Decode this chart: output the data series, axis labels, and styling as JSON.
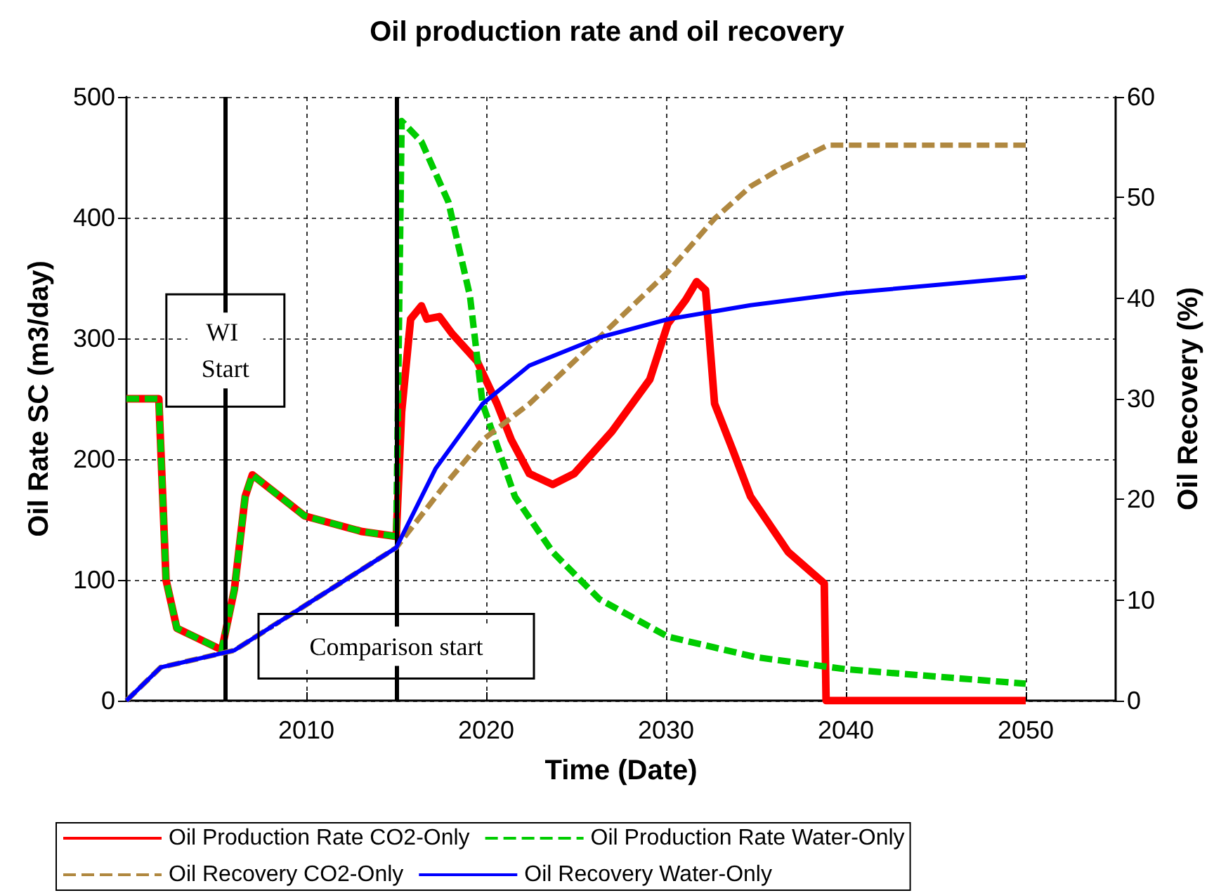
{
  "chart_data": {
    "type": "line",
    "title": "Oil production rate and oil recovery",
    "xlabel": "Time (Date)",
    "ylabel": "Oil Rate SC (m3/day)",
    "y2label": "Oil Recovery (%)",
    "xlim": [
      2000,
      2055
    ],
    "xticks": [
      2010,
      2020,
      2030,
      2040,
      2050
    ],
    "ylim": [
      0,
      500
    ],
    "yticks": [
      0,
      100,
      200,
      300,
      400,
      500
    ],
    "y2lim": [
      0,
      60
    ],
    "y2ticks": [
      0,
      10,
      20,
      30,
      40,
      50,
      60
    ],
    "grid": true,
    "legend": "bottom",
    "marker": "none",
    "ref_lines": [
      {
        "axis": "x",
        "value": 2005.5,
        "label": "WI Start",
        "color": "#000000",
        "line_style": "solid"
      },
      {
        "axis": "x",
        "value": 2015.0,
        "label": "Comparison start",
        "color": "#000000",
        "line_style": "solid"
      }
    ],
    "series": [
      {
        "name": "Oil Production Rate CO2-Only",
        "color": "#ff0000",
        "line_style": "solid",
        "x": [
          2000,
          2001.8,
          2002.2,
          2002.8,
          2005.3,
          2006.0,
          2006.6,
          2007.0,
          2009.9,
          2013.1,
          2015.0,
          2015.3,
          2015.8,
          2016.4,
          2016.7,
          2017.4,
          2018.1,
          2019.5,
          2020.6,
          2021.4,
          2022.4,
          2023.7,
          2024.9,
          2027.0,
          2029.1,
          2030.1,
          2031.1,
          2031.7,
          2032.2,
          2032.7,
          2033.7,
          2034.7,
          2036.8,
          2038.8,
          2038.9,
          2050
        ],
        "values": [
          250,
          250,
          100,
          60,
          42,
          92,
          169,
          187,
          153,
          140,
          136,
          239,
          316,
          327,
          316,
          318,
          304,
          281,
          246,
          216,
          188,
          179,
          188,
          223,
          266,
          312,
          332,
          347,
          340,
          246,
          208,
          169,
          123,
          97,
          0,
          0
        ]
      },
      {
        "name": "Oil Production Rate Water-Only",
        "color": "#00cc00",
        "line_style": "dashed",
        "x": [
          2000,
          2001.8,
          2002.2,
          2002.8,
          2005.3,
          2006.0,
          2006.6,
          2007.0,
          2009.9,
          2013.1,
          2015.0,
          2015.3,
          2016.4,
          2017.9,
          2019.1,
          2019.8,
          2021.6,
          2023.7,
          2026.3,
          2030.1,
          2035,
          2040,
          2045,
          2050
        ],
        "values": [
          250,
          250,
          100,
          60,
          42,
          92,
          169,
          187,
          153,
          140,
          136,
          480,
          463,
          413,
          335,
          246,
          169,
          123,
          84,
          53,
          36,
          26,
          20,
          14
        ]
      },
      {
        "name": "Oil Recovery CO2-Only",
        "color": "#b08840",
        "line_style": "dashed",
        "axis": "y2",
        "x": [
          2000,
          2001.9,
          2006.0,
          2015.0,
          2017.6,
          2019.8,
          2022.4,
          2026.3,
          2030.1,
          2032.7,
          2034.7,
          2036.3,
          2039.0,
          2050
        ],
        "values": [
          0,
          3.3,
          5.0,
          15.2,
          21.2,
          25.9,
          29.5,
          36.1,
          42.6,
          47.9,
          51.1,
          52.8,
          55.2,
          55.2
        ]
      },
      {
        "name": "Oil Recovery Water-Only",
        "color": "#0000ff",
        "line_style": "solid",
        "axis": "y2",
        "x": [
          2000,
          2001.9,
          2006.0,
          2015.0,
          2017.2,
          2019.8,
          2022.4,
          2026.3,
          2030.1,
          2034.7,
          2040,
          2050
        ],
        "values": [
          0,
          3.3,
          5.0,
          15.2,
          23.1,
          29.5,
          33.3,
          36.1,
          37.9,
          39.3,
          40.5,
          42.1
        ]
      }
    ]
  }
}
